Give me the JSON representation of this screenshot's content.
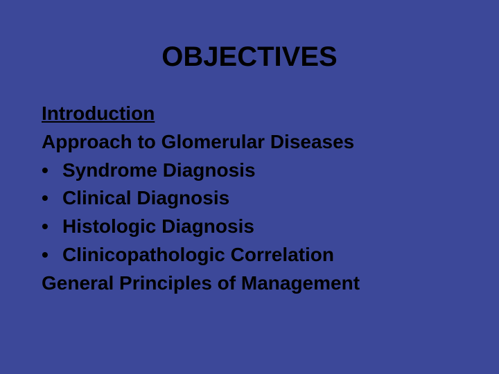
{
  "slide": {
    "background_color": "#3c4899",
    "title": {
      "text": "OBJECTIVES",
      "color": "#000000",
      "fontsize": 40,
      "font_weight": "bold"
    },
    "body": {
      "color": "#000000",
      "fontsize": 28,
      "font_weight": "bold",
      "line_height": 1.35
    },
    "lines": [
      {
        "text": "Introduction",
        "underlined": true,
        "bullet": false
      },
      {
        "text": "Approach to Glomerular Diseases",
        "underlined": false,
        "bullet": false
      },
      {
        "text": "Syndrome Diagnosis",
        "underlined": false,
        "bullet": true
      },
      {
        "text": "Clinical Diagnosis",
        "underlined": false,
        "bullet": true
      },
      {
        "text": "Histologic Diagnosis",
        "underlined": false,
        "bullet": true
      },
      {
        "text": "Clinicopathologic Correlation",
        "underlined": false,
        "bullet": true
      },
      {
        "text": "General Principles of Management",
        "underlined": false,
        "bullet": false
      }
    ],
    "bullet_marker": "•"
  }
}
